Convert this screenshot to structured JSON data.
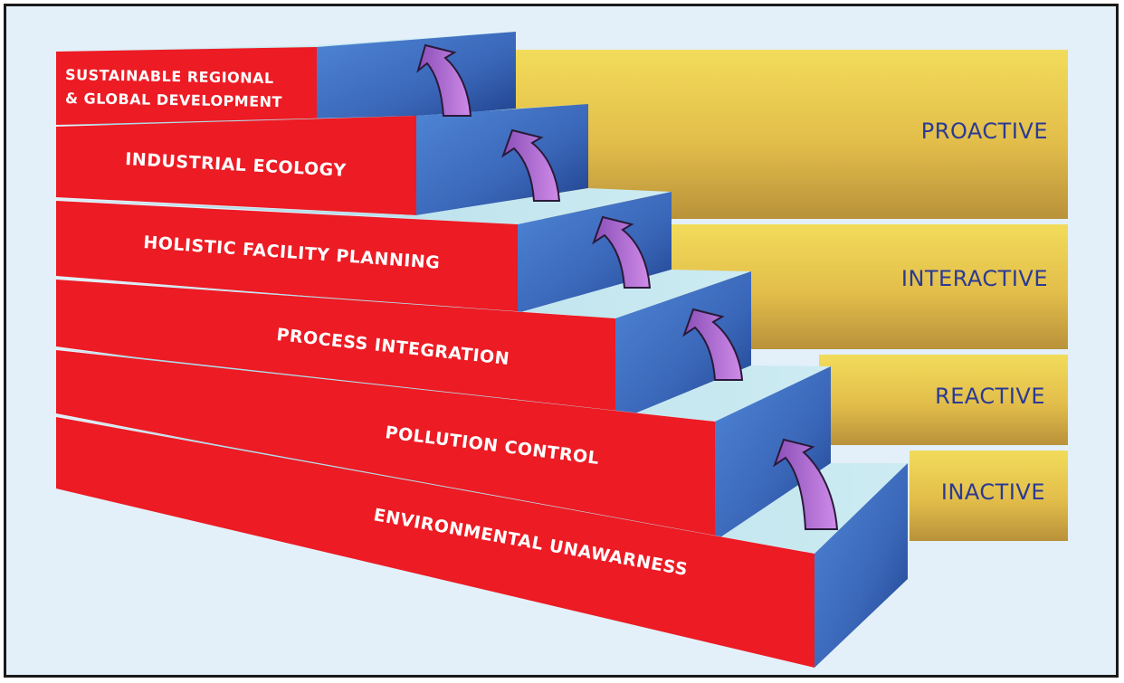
{
  "steps": [
    {
      "line1": "SUSTAINABLE REGIONAL",
      "line2": "& GLOBAL DEVELOPMENT"
    },
    {
      "line1": "INDUSTRIAL ECOLOGY"
    },
    {
      "line1": "HOLISTIC FACILITY PLANNING"
    },
    {
      "line1": "PROCESS INTEGRATION"
    },
    {
      "line1": "POLLUTION CONTROL"
    },
    {
      "line1": "ENVIRONMENTAL UNAWARNESS"
    }
  ],
  "levels": [
    {
      "label": "PROACTIVE"
    },
    {
      "label": "INTERACTIVE"
    },
    {
      "label": "REACTIVE"
    },
    {
      "label": "INACTIVE"
    }
  ],
  "colors": {
    "step_front": "#ec1b24",
    "step_top": "#b9e2ec",
    "step_riser": "#3c6ec2",
    "arrow": "#b56ad6",
    "band": "#e8c24a",
    "level_text": "#2b3a94",
    "background": "#e3f0f9"
  },
  "icons": {
    "step_arrow": "curved-up-arrow-icon"
  }
}
